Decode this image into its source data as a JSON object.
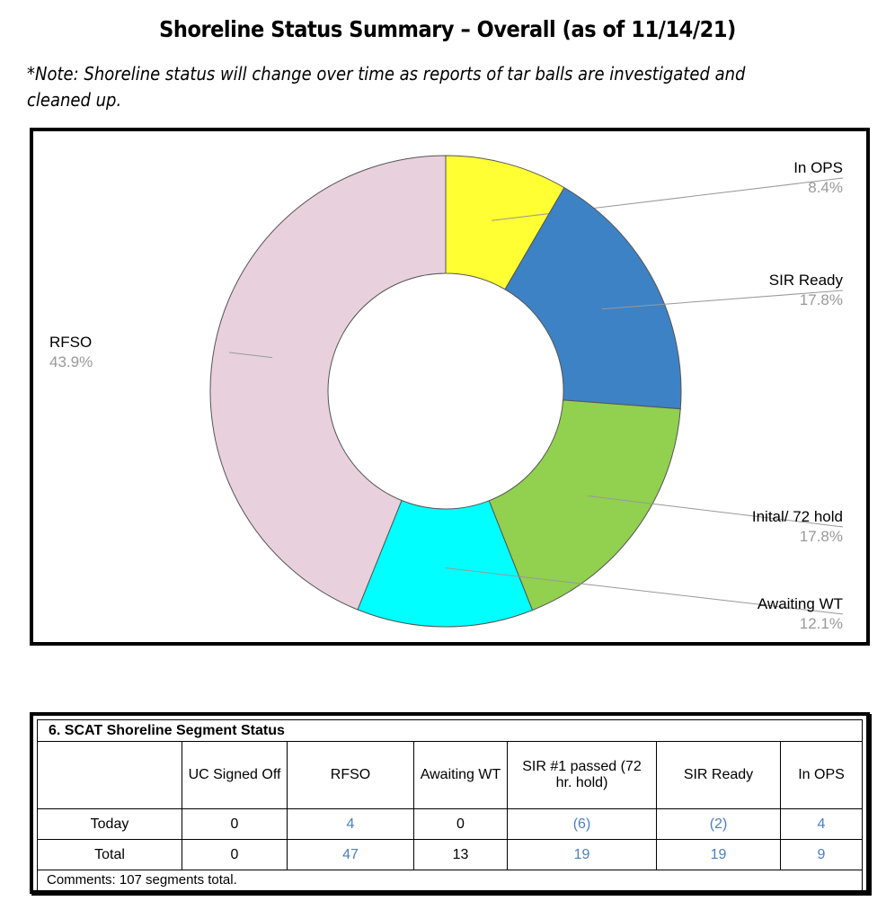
{
  "title": "Shoreline Status Summary – Overall (as of 11/14/21)",
  "note": "*Note: Shoreline status will change over time as reports of tar balls are investigated and cleaned up.",
  "chart_data": {
    "type": "pie",
    "donut": true,
    "title": "",
    "slices": [
      {
        "label": "In OPS",
        "value": 8.4,
        "display": "8.4%",
        "color": "#ffff33"
      },
      {
        "label": "SIR Ready",
        "value": 17.8,
        "display": "17.8%",
        "color": "#3d82c4"
      },
      {
        "label": "Inital/ 72 hold",
        "value": 17.8,
        "display": "17.8%",
        "color": "#92d050"
      },
      {
        "label": "Awaiting WT",
        "value": 12.1,
        "display": "12.1%",
        "color": "#00ffff"
      },
      {
        "label": "RFSO",
        "value": 43.9,
        "display": "43.9%",
        "color": "#e8d1dc"
      }
    ]
  },
  "table": {
    "title": "6. SCAT Shoreline Segment Status",
    "headers": [
      "",
      "UC Signed Off",
      "RFSO",
      "Awaiting WT",
      "SIR #1 passed (72 hr. hold)",
      "SIR Ready",
      "In OPS"
    ],
    "rows": [
      {
        "label": "Today",
        "cells": [
          "0",
          "4",
          "0",
          "(6)",
          "(2)",
          "4"
        ]
      },
      {
        "label": "Total",
        "cells": [
          "0",
          "47",
          "13",
          "19",
          "19",
          "9"
        ]
      }
    ],
    "comments": "Comments:  107 segments total."
  }
}
